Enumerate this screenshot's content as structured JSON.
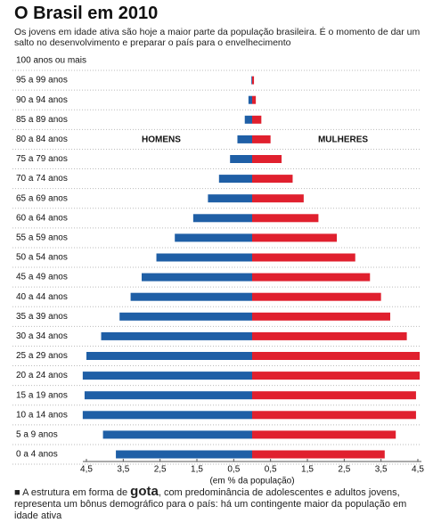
{
  "chart_data": {
    "type": "pyramid",
    "title": "O Brasil em 2010",
    "subtitle": "Os jovens em idade ativa são hoje a maior parte da população brasileira. É o momento de dar um salto no desenvolvimento e preparar o país para o envelhecimento",
    "categories": [
      "100 anos ou mais",
      "95 a 99 anos",
      "90 a 94 anos",
      "85 a 89 anos",
      "80 a 84 anos",
      "75 a 79 anos",
      "70 a 74 anos",
      "65 a 69 anos",
      "60 a 64 anos",
      "55 a 59 anos",
      "50 a 54 anos",
      "45 a 49 anos",
      "40 a 44 anos",
      "35 a 39 anos",
      "30 a 34 anos",
      "25 a 29 anos",
      "20 a 24 anos",
      "15 a 19 anos",
      "10 a 14 anos",
      "5 a 9 anos",
      "0 a 4 anos"
    ],
    "series": [
      {
        "name": "HOMENS",
        "color": "#1f5fa6",
        "side": "left",
        "values": [
          0,
          0.02,
          0.1,
          0.2,
          0.4,
          0.6,
          0.9,
          1.2,
          1.6,
          2.1,
          2.6,
          3.0,
          3.3,
          3.6,
          4.1,
          4.5,
          4.6,
          4.55,
          4.6,
          4.05,
          3.7
        ]
      },
      {
        "name": "MULHERES",
        "color": "#e0202e",
        "side": "right",
        "values": [
          0,
          0.05,
          0.1,
          0.25,
          0.5,
          0.8,
          1.1,
          1.4,
          1.8,
          2.3,
          2.8,
          3.2,
          3.5,
          3.75,
          4.2,
          4.55,
          4.55,
          4.45,
          4.45,
          3.9,
          3.6
        ]
      }
    ],
    "xlim": [
      0,
      4.5
    ],
    "xticks": [
      {
        "value": 4.5,
        "label": "4,5"
      },
      {
        "value": 3.5,
        "label": "3,5"
      },
      {
        "value": 2.5,
        "label": "2,5"
      },
      {
        "value": 1.5,
        "label": "1,5"
      },
      {
        "value": 0.5,
        "label": "0,5"
      }
    ],
    "xlabel": "(em % da população)",
    "footnote": {
      "before": "A estrutura em forma de",
      "emphasis": "gota",
      "after": ", com predominância de adolescentes e adultos jovens, representa um bônus demográfico para o país: há um contingente maior da população em idade ativa"
    }
  }
}
